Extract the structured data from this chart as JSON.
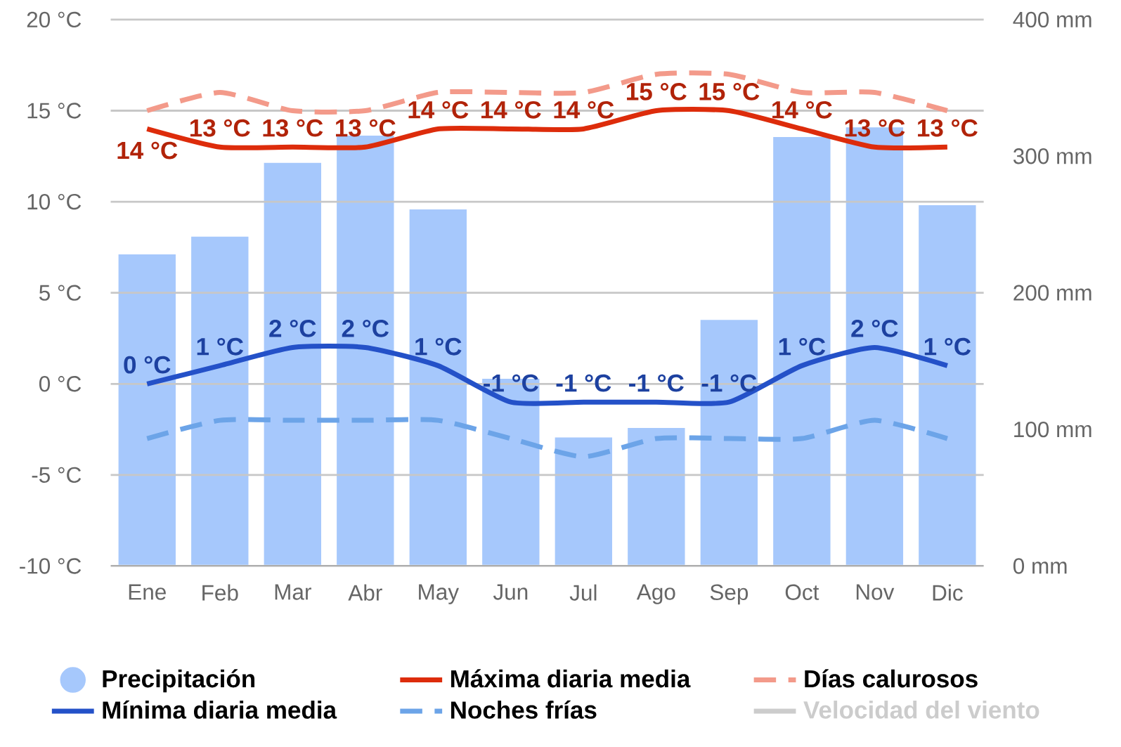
{
  "chart_data": {
    "type": "line",
    "categories": [
      "Ene",
      "Feb",
      "Mar",
      "Abr",
      "May",
      "Jun",
      "Jul",
      "Ago",
      "Sep",
      "Oct",
      "Nov",
      "Dic"
    ],
    "series": [
      {
        "name": "Precipitación",
        "type": "bar",
        "axis": "y2",
        "color": "#a6c8fc",
        "values": [
          229,
          242,
          296,
          316,
          262,
          138,
          95,
          102,
          181,
          315,
          322,
          265
        ]
      },
      {
        "name": "Máxima diaria media",
        "color": "#dd2c0b",
        "line_style": "solid",
        "values": [
          14,
          13,
          13,
          13,
          14,
          14,
          14,
          15,
          15,
          14,
          13,
          13
        ],
        "value_labels": [
          "14 °C",
          "13 °C",
          "13 °C",
          "13 °C",
          "14 °C",
          "14 °C",
          "14 °C",
          "15 °C",
          "15 °C",
          "14 °C",
          "13 °C",
          "13 °C"
        ]
      },
      {
        "name": "Días calurosos",
        "color": "#f39a8a",
        "line_style": "dashed",
        "values": [
          15,
          16,
          15,
          15,
          16,
          16,
          16,
          17,
          17,
          16,
          16,
          15
        ]
      },
      {
        "name": "Mínima diaria media",
        "color": "#2451c8",
        "line_style": "solid",
        "values": [
          0,
          1,
          2,
          2,
          1,
          -1,
          -1,
          -1,
          -1,
          1,
          2,
          1
        ],
        "value_labels": [
          "0 °C",
          "1 °C",
          "2 °C",
          "2 °C",
          "1 °C",
          "-1 °C",
          "-1 °C",
          "-1 °C",
          "-1 °C",
          "1 °C",
          "2 °C",
          "1 °C"
        ]
      },
      {
        "name": "Noches frías",
        "color": "#6ca4e8",
        "line_style": "dashed",
        "values": [
          -3,
          -2,
          -2,
          -2,
          -2,
          -3,
          -4,
          -3,
          -3,
          -3,
          -2,
          -3
        ]
      },
      {
        "name": "Velocidad del viento",
        "color": "#cccccc",
        "line_style": "solid",
        "values": [
          null,
          null,
          null,
          null,
          null,
          null,
          null,
          null,
          null,
          null,
          null,
          null
        ]
      }
    ],
    "ylim": [
      -10,
      20
    ],
    "yticks": [
      {
        "value": -10,
        "label": "-10 °C"
      },
      {
        "value": -5,
        "label": "-5 °C"
      },
      {
        "value": 0,
        "label": "0 °C"
      },
      {
        "value": 5,
        "label": "5 °C"
      },
      {
        "value": 10,
        "label": "10 °C"
      },
      {
        "value": 15,
        "label": "15 °C"
      },
      {
        "value": 20,
        "label": "20 °C"
      }
    ],
    "y2lim": [
      0,
      400
    ],
    "y2ticks": [
      {
        "value": 0,
        "label": "0 mm"
      },
      {
        "value": 100,
        "label": "100 mm"
      },
      {
        "value": 200,
        "label": "200 mm"
      },
      {
        "value": 300,
        "label": "300 mm"
      },
      {
        "value": 400,
        "label": "400 mm"
      }
    ],
    "grid": "y",
    "legend": "bottom",
    "marker": "none"
  }
}
